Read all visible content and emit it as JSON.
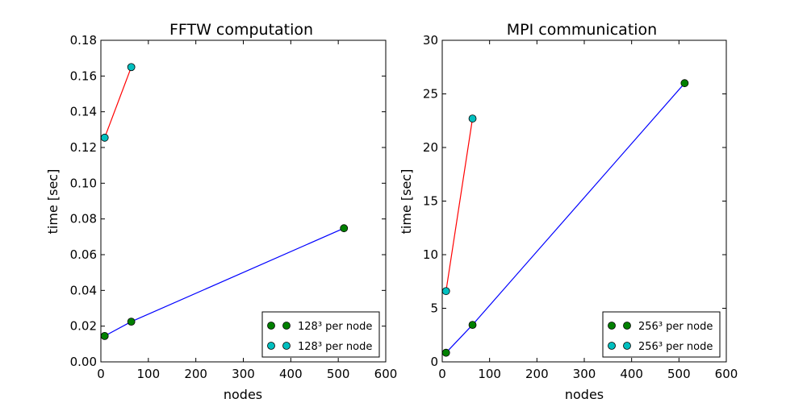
{
  "figure": {
    "background": "#ffffff"
  },
  "chart_data": [
    {
      "type": "line",
      "title": "FFTW computation",
      "xlabel": "nodes",
      "ylabel": "time [sec]",
      "xlim": [
        0,
        600
      ],
      "ylim": [
        0,
        0.18
      ],
      "xticks": [
        0,
        100,
        200,
        300,
        400,
        500,
        600
      ],
      "xtick_labels": [
        "0",
        "100",
        "200",
        "300",
        "400",
        "500",
        "600"
      ],
      "yticks": [
        0,
        0.02,
        0.04,
        0.06,
        0.08,
        0.1,
        0.12,
        0.14,
        0.16,
        0.18
      ],
      "ytick_labels": [
        "0.00",
        "0.02",
        "0.04",
        "0.06",
        "0.08",
        "0.10",
        "0.12",
        "0.14",
        "0.16",
        "0.18"
      ],
      "grid": false,
      "legend_position": "lower-right",
      "series": [
        {
          "name": "128³ per node",
          "line_color": "#0000ff",
          "marker_color": "#008000",
          "x": [
            8,
            64,
            512
          ],
          "y": [
            0.0145,
            0.0225,
            0.0748
          ]
        },
        {
          "name": "128³ per node",
          "line_color": "#ff0000",
          "marker_color": "#00bfbf",
          "x": [
            8,
            64
          ],
          "y": [
            0.1255,
            0.165
          ]
        }
      ]
    },
    {
      "type": "line",
      "title": "MPI communication",
      "xlabel": "nodes",
      "ylabel": "time [sec]",
      "xlim": [
        0,
        600
      ],
      "ylim": [
        0,
        30
      ],
      "xticks": [
        0,
        100,
        200,
        300,
        400,
        500,
        600
      ],
      "xtick_labels": [
        "0",
        "100",
        "200",
        "300",
        "400",
        "500",
        "600"
      ],
      "yticks": [
        0,
        5,
        10,
        15,
        20,
        25,
        30
      ],
      "ytick_labels": [
        "0",
        "5",
        "10",
        "15",
        "20",
        "25",
        "30"
      ],
      "grid": false,
      "legend_position": "lower-right",
      "series": [
        {
          "name": "256³ per node",
          "line_color": "#0000ff",
          "marker_color": "#008000",
          "x": [
            8,
            64,
            512
          ],
          "y": [
            0.85,
            3.45,
            26.0
          ]
        },
        {
          "name": "256³ per node",
          "line_color": "#ff0000",
          "marker_color": "#00bfbf",
          "x": [
            8,
            64
          ],
          "y": [
            6.6,
            22.7
          ]
        }
      ]
    }
  ]
}
